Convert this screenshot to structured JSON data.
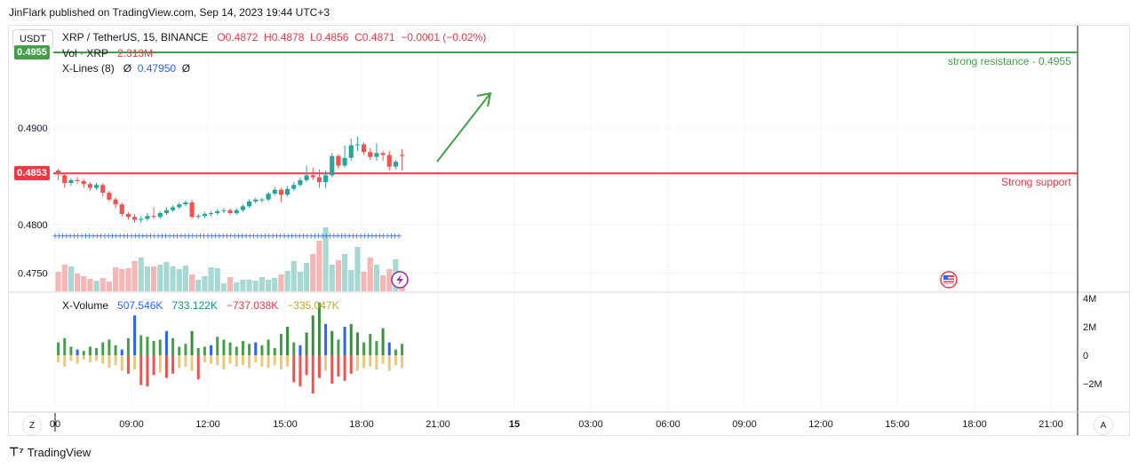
{
  "header": {
    "published": "JinFlark published on TradingView.com, Sep 14, 2023 19:44 UTC+3"
  },
  "toolbar": {
    "currency_label": "USDT"
  },
  "legend": {
    "symbol": "XRP / TetherUS, 15, BINANCE",
    "open": "O0.4872",
    "high": "H0.4878",
    "low": "L0.4856",
    "close": "C0.4871",
    "change": "−0.0001 (−0.02%)",
    "vol_label": "Vol · XRP",
    "vol_value": "2.313M",
    "xlines_label": "X-Lines (8)",
    "xlines_sym1": "Ø",
    "xlines_value": "0.47950",
    "xlines_sym2": "Ø"
  },
  "price_tags": {
    "resistance": "0.4955",
    "support": "0.4853"
  },
  "annotations": {
    "resistance": "strong resistance - 0.4955",
    "support": "Strong support"
  },
  "xvolume": {
    "label": "X-Volume",
    "v1": "507.546K",
    "v2": "733.122K",
    "v3": "−737.038K",
    "v4": "−335.047K"
  },
  "footer": {
    "brand": "TradingView"
  },
  "corner_buttons": {
    "left": "Z",
    "right": "A"
  },
  "colors": {
    "up": "#26a69a",
    "down": "#ef5350",
    "resistance": "#43a047",
    "support": "#f23645",
    "xline": "#2962ff"
  },
  "chart_data": {
    "type": "candlestick",
    "price_axis": {
      "ticks": [
        "0.4900",
        "0.4850",
        "0.4800",
        "0.4750"
      ],
      "tick_values": [
        0.49,
        0.485,
        0.48,
        0.475
      ],
      "range": [
        0.4735,
        0.4995
      ]
    },
    "time_axis": {
      "ticks": [
        "00",
        "09:00",
        "12:00",
        "15:00",
        "18:00",
        "21:00",
        "15",
        "03:00",
        "06:00",
        "09:00",
        "12:00",
        "15:00",
        "18:00",
        "21:00"
      ]
    },
    "volume_axis": {
      "ticks": [
        "4M",
        "2M",
        "0",
        "−2M"
      ],
      "tick_values": [
        4000000,
        2000000,
        0,
        -2000000
      ],
      "range": [
        -3500000,
        4600000
      ]
    },
    "levels": [
      {
        "name": "strong resistance",
        "value": 0.4955,
        "color": "#43a047"
      },
      {
        "name": "Strong support",
        "value": 0.4853,
        "color": "#f23645"
      },
      {
        "name": "X-Lines",
        "value": 0.4795,
        "color": "#2962ff"
      }
    ],
    "candles": [
      [
        0.4856,
        0.4852,
        0.4858,
        0.4846
      ],
      [
        0.4851,
        0.4843,
        0.4853,
        0.4838
      ],
      [
        0.4843,
        0.4846,
        0.4848,
        0.484
      ],
      [
        0.4846,
        0.4845,
        0.4849,
        0.4842
      ],
      [
        0.4845,
        0.4842,
        0.4847,
        0.4838
      ],
      [
        0.4842,
        0.4838,
        0.4844,
        0.4835
      ],
      [
        0.4838,
        0.4841,
        0.4843,
        0.4836
      ],
      [
        0.4841,
        0.4833,
        0.4843,
        0.4829
      ],
      [
        0.4833,
        0.4826,
        0.4835,
        0.4824
      ],
      [
        0.4826,
        0.4821,
        0.4828,
        0.4817
      ],
      [
        0.4821,
        0.4811,
        0.4823,
        0.4808
      ],
      [
        0.4811,
        0.4808,
        0.4813,
        0.4805
      ],
      [
        0.4808,
        0.4805,
        0.4811,
        0.4802
      ],
      [
        0.4805,
        0.4806,
        0.4809,
        0.4802
      ],
      [
        0.4806,
        0.4809,
        0.4812,
        0.4804
      ],
      [
        0.4809,
        0.4808,
        0.4818,
        0.4806
      ],
      [
        0.4808,
        0.4812,
        0.4814,
        0.4806
      ],
      [
        0.4812,
        0.4815,
        0.4818,
        0.481
      ],
      [
        0.4815,
        0.4818,
        0.482,
        0.4813
      ],
      [
        0.4818,
        0.4821,
        0.4823,
        0.4816
      ],
      [
        0.4821,
        0.4823,
        0.4825,
        0.4819
      ],
      [
        0.4823,
        0.4808,
        0.4826,
        0.4806
      ],
      [
        0.4808,
        0.4809,
        0.4811,
        0.4806
      ],
      [
        0.4809,
        0.4811,
        0.4813,
        0.4807
      ],
      [
        0.4811,
        0.4812,
        0.4814,
        0.4809
      ],
      [
        0.4812,
        0.4814,
        0.4816,
        0.481
      ],
      [
        0.4814,
        0.4815,
        0.4817,
        0.4812
      ],
      [
        0.4815,
        0.4812,
        0.4817,
        0.481
      ],
      [
        0.4812,
        0.4815,
        0.4817,
        0.481
      ],
      [
        0.4815,
        0.4819,
        0.4821,
        0.4813
      ],
      [
        0.4819,
        0.4824,
        0.4826,
        0.4817
      ],
      [
        0.4824,
        0.4826,
        0.4828,
        0.4822
      ],
      [
        0.4826,
        0.4826,
        0.4828,
        0.4823
      ],
      [
        0.4826,
        0.4832,
        0.4834,
        0.4824
      ],
      [
        0.4832,
        0.4836,
        0.4839,
        0.483
      ],
      [
        0.4836,
        0.4831,
        0.4838,
        0.4823
      ],
      [
        0.4831,
        0.4837,
        0.484,
        0.4829
      ],
      [
        0.4837,
        0.4841,
        0.4844,
        0.4835
      ],
      [
        0.4841,
        0.4846,
        0.4849,
        0.4839
      ],
      [
        0.4846,
        0.4851,
        0.4861,
        0.4844
      ],
      [
        0.4851,
        0.4849,
        0.4859,
        0.4846
      ],
      [
        0.4849,
        0.4844,
        0.4857,
        0.4838
      ],
      [
        0.4844,
        0.4851,
        0.4856,
        0.4838
      ],
      [
        0.4851,
        0.4871,
        0.4874,
        0.4849
      ],
      [
        0.4871,
        0.4861,
        0.4873,
        0.4858
      ],
      [
        0.4861,
        0.4869,
        0.4882,
        0.4859
      ],
      [
        0.4869,
        0.4882,
        0.4889,
        0.4866
      ],
      [
        0.4882,
        0.4883,
        0.4891,
        0.4876
      ],
      [
        0.4883,
        0.4875,
        0.4885,
        0.4872
      ],
      [
        0.4875,
        0.487,
        0.4879,
        0.4867
      ],
      [
        0.487,
        0.4874,
        0.4884,
        0.4866
      ],
      [
        0.4874,
        0.4872,
        0.4876,
        0.4866
      ],
      [
        0.4872,
        0.486,
        0.4876,
        0.4856
      ],
      [
        0.486,
        0.4865,
        0.4867,
        0.4857
      ],
      [
        0.4872,
        0.4871,
        0.4878,
        0.4856
      ]
    ],
    "volumes": [
      22,
      30,
      28,
      20,
      17,
      14,
      12,
      15,
      11,
      27,
      25,
      26,
      34,
      38,
      28,
      28,
      30,
      33,
      28,
      25,
      29,
      19,
      13,
      17,
      27,
      26,
      9,
      16,
      10,
      13,
      13,
      12,
      16,
      13,
      15,
      19,
      23,
      34,
      22,
      32,
      42,
      57,
      72,
      30,
      35,
      42,
      24,
      50,
      22,
      38,
      30,
      18,
      25,
      36,
      15
    ],
    "xvolume_buy": [
      0.9,
      1.2,
      0.6,
      0.4,
      0.3,
      0.6,
      0.5,
      0.9,
      1.1,
      0.7,
      0.4,
      1.2,
      2.8,
      1.4,
      1.3,
      1.0,
      1.1,
      1.7,
      1.2,
      0.6,
      0.8,
      1.7,
      0.5,
      0.6,
      0.7,
      1.3,
      1.1,
      0.9,
      0.6,
      1.0,
      0.8,
      0.9,
      0.7,
      1.1,
      0.5,
      1.5,
      2.0,
      0.9,
      0.7,
      1.6,
      2.8,
      3.7,
      2.2,
      1.7,
      1.1,
      2.0,
      2.2,
      1.6,
      0.9,
      1.5,
      1.0,
      1.9,
      0.9,
      0.4,
      0.8
    ],
    "xvolume_sell": [
      -0.5,
      -0.8,
      -0.4,
      -0.6,
      -0.3,
      -0.5,
      -0.4,
      -0.6,
      -0.9,
      -0.7,
      -1.1,
      -1.3,
      -1.0,
      -2.1,
      -2.2,
      -1.4,
      -1.2,
      -1.6,
      -1.3,
      -0.9,
      -0.8,
      -1.1,
      -1.7,
      -0.5,
      -0.6,
      -0.7,
      -1.0,
      -0.6,
      -0.8,
      -0.7,
      -0.9,
      -0.5,
      -0.8,
      -0.9,
      -0.7,
      -1.0,
      -0.8,
      -1.9,
      -2.2,
      -1.4,
      -2.7,
      -1.6,
      -1.1,
      -2.0,
      -1.5,
      -1.8,
      -1.3,
      -1.1,
      -0.9,
      -0.8,
      -1.0,
      -0.6,
      -1.1,
      -0.7,
      -0.9
    ]
  }
}
